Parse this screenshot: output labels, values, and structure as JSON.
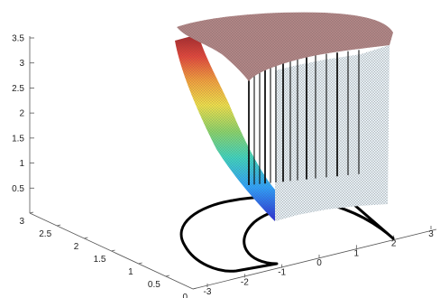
{
  "chart_data": {
    "type": "surface3d",
    "title": "",
    "xlabel": "",
    "ylabel": "",
    "zlabel": "",
    "axes": {
      "x": {
        "ticks": [
          -3,
          -2,
          -1,
          0,
          1,
          2,
          3
        ],
        "tick_labels": [
          "-3",
          "-2",
          "-1",
          "0",
          "1",
          "2",
          "3"
        ],
        "range": [
          -3,
          3
        ]
      },
      "y": {
        "ticks": [
          0,
          0.5,
          1,
          1.5,
          2,
          2.5,
          3
        ],
        "tick_labels": [
          "0",
          "0.5",
          "1",
          "1.5",
          "2",
          "2.5",
          "3"
        ],
        "range": [
          0,
          3
        ]
      },
      "z": {
        "ticks": [
          0.5,
          1,
          1.5,
          2,
          2.5,
          3,
          3.5
        ],
        "tick_labels": [
          "0.5",
          "1",
          "1.5",
          "2",
          "2.5",
          "3",
          "3.5"
        ],
        "range": [
          0,
          3.6
        ]
      }
    },
    "grid": false,
    "domain_outline": {
      "shape": "half-annulus (U-shaped) region",
      "inner_radius": 1,
      "outer_radius": 2,
      "line_color": "#000000"
    },
    "surface": {
      "description": "mesh surface over the U-shaped domain; top cap flat near z≈3.5 colored brown/pink; outer wall shaded with a jet colormap; vertical black lines along the inner edge",
      "top_cap_height": 3.5,
      "cap_color": "#b38686",
      "colormap": [
        "#2b2bd6",
        "#2ea3ff",
        "#3fd6c0",
        "#8cd66a",
        "#f2e24a",
        "#f6a23c",
        "#e6463a",
        "#a3262a"
      ]
    }
  }
}
